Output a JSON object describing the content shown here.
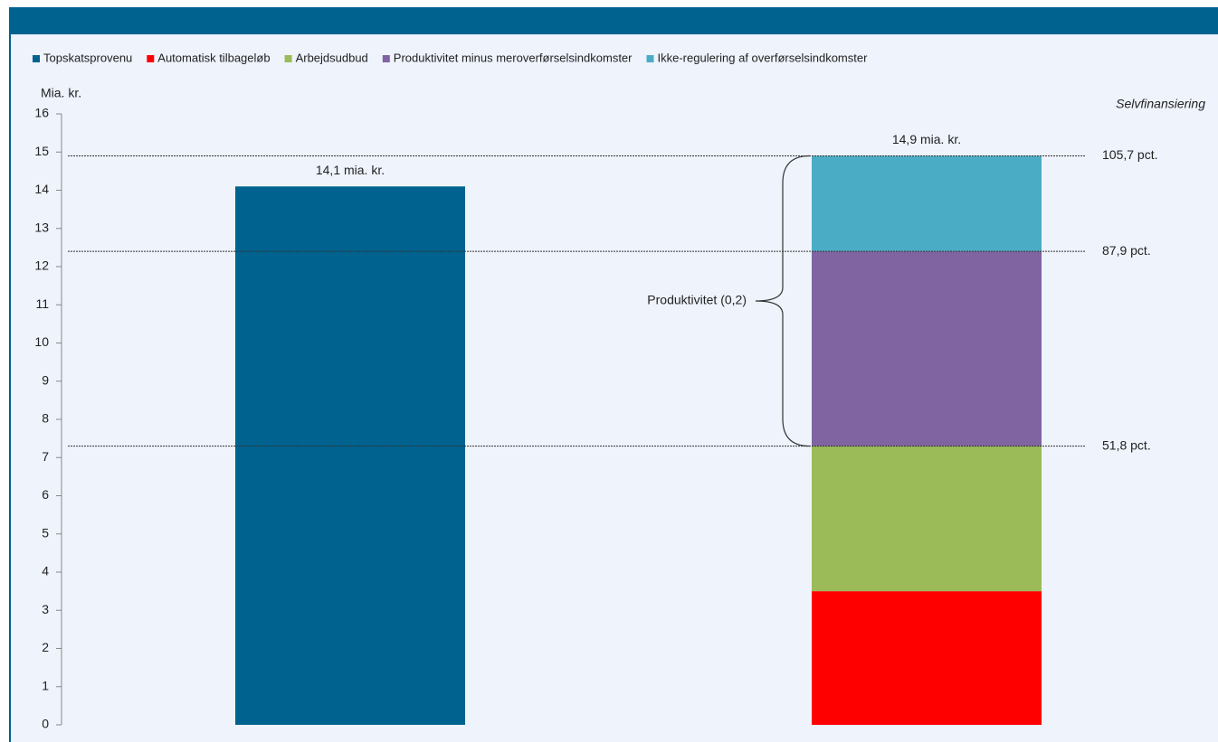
{
  "chart_data": {
    "type": "stacked_bar",
    "categories": [
      null,
      null
    ],
    "series": [
      {
        "name": "Topskatsprovenu",
        "color": "#00628f",
        "values": [
          14.1,
          null
        ]
      },
      {
        "name": "Automatisk tilbageløb",
        "color": "#ff0000",
        "values": [
          null,
          3.5
        ]
      },
      {
        "name": "Arbejdsudbud",
        "color": "#9bbb59",
        "values": [
          null,
          3.8
        ]
      },
      {
        "name": "Produktivitet minus meroverførselsindkomster",
        "color": "#8064a2",
        "values": [
          null,
          5.1
        ]
      },
      {
        "name": "Ikke-regulering af overførselsindkomster",
        "color": "#4bacc6",
        "values": [
          null,
          2.5
        ]
      }
    ],
    "value_labels": [
      {
        "index": 0,
        "value": 14.1,
        "text": "14,1 mia. kr."
      },
      {
        "index": 1,
        "value": 14.9,
        "text": "14,9 mia. kr."
      }
    ],
    "y_label": "Mia. kr.",
    "right_label": "Selvfinansiering",
    "reference_lines": [
      {
        "value": 14.9,
        "label": "105,7 pct."
      },
      {
        "value": 12.4,
        "label": "87,9 pct."
      },
      {
        "value": 7.3,
        "label": "51,8 pct."
      }
    ],
    "brace": {
      "text": "Produktivitet (0,2)",
      "from": 7.3,
      "to": 14.9
    },
    "ylim": [
      0,
      16
    ],
    "yticks": [
      0,
      1,
      2,
      3,
      4,
      5,
      6,
      7,
      8,
      9,
      10,
      11,
      12,
      13,
      14,
      15,
      16
    ],
    "legend": "top"
  }
}
